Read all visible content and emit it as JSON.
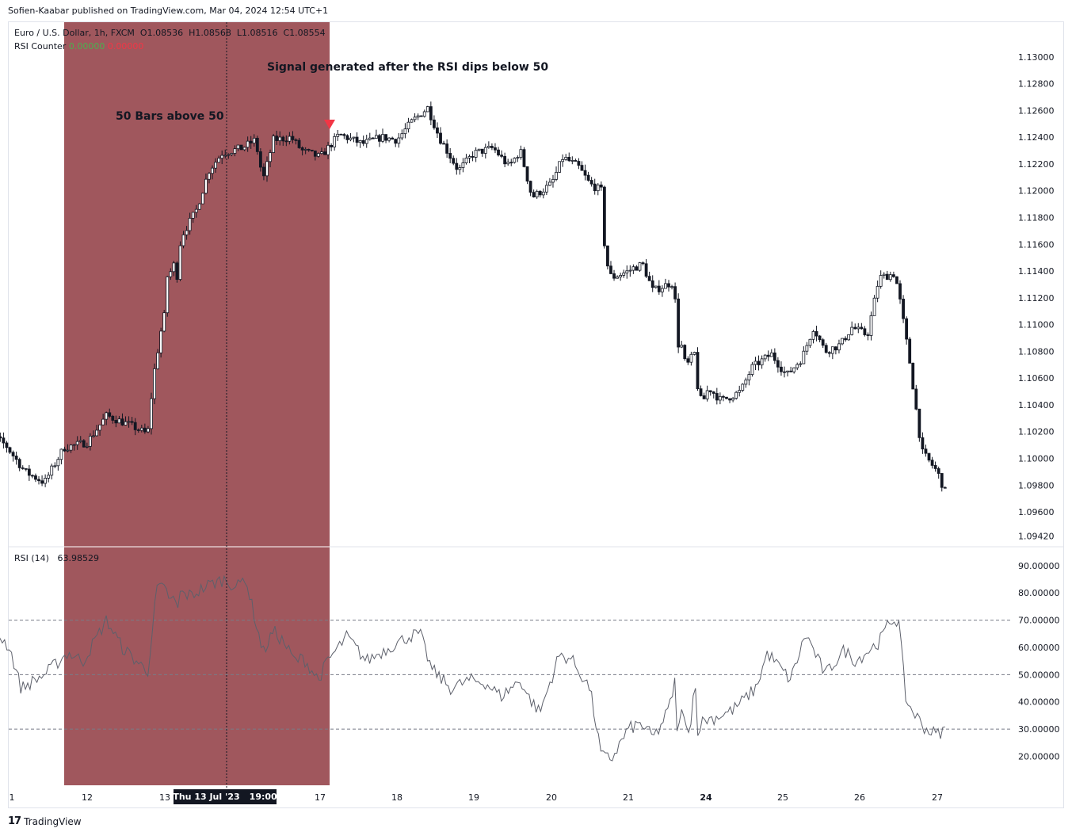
{
  "header": {
    "credit": "Sofien-Kaabar published on TradingView.com, Mar 04, 2024 12:54 UTC+1"
  },
  "price_legend": {
    "symbol": "Euro / U.S. Dollar, 1h, FXCM",
    "open": "O1.08536",
    "high": "H1.08568",
    "low": "L1.08516",
    "close": "C1.08554"
  },
  "counter_legend": {
    "name": "RSI Counter",
    "value1": "0.00000",
    "value2": "0.00000",
    "color1": "#4caf50",
    "color2": "#f23645"
  },
  "rsi_legend": {
    "name": "RSI (14)",
    "value": "63.98529"
  },
  "annotations": {
    "signal": "Signal generated after the RSI dips below 50",
    "bars": "50 Bars above 50"
  },
  "crosshair": {
    "date": "Thu 13 Jul '23",
    "time": "19:00"
  },
  "footer": {
    "brand": "TradingView",
    "mark": "17"
  },
  "colors": {
    "highlight": "#a0575d",
    "signal_marker": "#f23645",
    "candle": "#131722",
    "rsi_line": "#5d606b"
  },
  "chart_data": [
    {
      "type": "candlestick",
      "title": "Euro / U.S. Dollar, 1h, FXCM",
      "y_ticks": [
        "1.13000",
        "1.12800",
        "1.12600",
        "1.12400",
        "1.12200",
        "1.12000",
        "1.11800",
        "1.11600",
        "1.11400",
        "1.11200",
        "1.11000",
        "1.10800",
        "1.10600",
        "1.10400",
        "1.10200",
        "1.10000",
        "1.09800",
        "1.09600",
        "1.09420"
      ],
      "ylim": [
        1.0942,
        1.1312
      ],
      "x_ticks": [
        "1",
        "12",
        "13",
        "17",
        "18",
        "19",
        "20",
        "21",
        "24",
        "25",
        "26",
        "27"
      ],
      "x_ticks_bold": [
        "24"
      ],
      "highlight_range_days": [
        11.45,
        17.0
      ],
      "signal_marker_day": 17.0,
      "path_points": [
        {
          "d": 10.55,
          "p": 1.1002
        },
        {
          "d": 10.75,
          "p": 1.1018
        },
        {
          "d": 10.95,
          "p": 1.101
        },
        {
          "d": 11.2,
          "p": 1.099
        },
        {
          "d": 11.45,
          "p": 1.0982
        },
        {
          "d": 11.7,
          "p": 1.1008
        },
        {
          "d": 12.0,
          "p": 1.1012
        },
        {
          "d": 12.25,
          "p": 1.1032
        },
        {
          "d": 12.55,
          "p": 1.1025
        },
        {
          "d": 12.78,
          "p": 1.1018
        },
        {
          "d": 12.85,
          "p": 1.106
        },
        {
          "d": 12.95,
          "p": 1.1095
        },
        {
          "d": 13.1,
          "p": 1.1135
        },
        {
          "d": 13.4,
          "p": 1.114
        },
        {
          "d": 13.7,
          "p": 1.1148
        },
        {
          "d": 13.8,
          "p": 1.1132
        },
        {
          "d": 14.0,
          "p": 1.1165
        },
        {
          "d": 14.3,
          "p": 1.1185
        },
        {
          "d": 14.55,
          "p": 1.1215
        },
        {
          "d": 14.8,
          "p": 1.1228
        },
        {
          "d": 15.2,
          "p": 1.1232
        },
        {
          "d": 15.45,
          "p": 1.1238
        },
        {
          "d": 15.6,
          "p": 1.1208
        },
        {
          "d": 15.8,
          "p": 1.1238
        },
        {
          "d": 16.2,
          "p": 1.124
        },
        {
          "d": 16.5,
          "p": 1.123
        },
        {
          "d": 17.0,
          "p": 1.1225
        },
        {
          "d": 17.25,
          "p": 1.1242
        },
        {
          "d": 17.55,
          "p": 1.1235
        },
        {
          "d": 17.8,
          "p": 1.124
        },
        {
          "d": 18.0,
          "p": 1.1238
        },
        {
          "d": 18.2,
          "p": 1.1252
        },
        {
          "d": 18.4,
          "p": 1.1262
        },
        {
          "d": 18.55,
          "p": 1.124
        },
        {
          "d": 18.8,
          "p": 1.1215
        },
        {
          "d": 19.0,
          "p": 1.1228
        },
        {
          "d": 19.25,
          "p": 1.1232
        },
        {
          "d": 19.45,
          "p": 1.1218
        },
        {
          "d": 19.6,
          "p": 1.123
        },
        {
          "d": 19.75,
          "p": 1.1195
        },
        {
          "d": 20.0,
          "p": 1.1205
        },
        {
          "d": 20.15,
          "p": 1.1225
        },
        {
          "d": 20.35,
          "p": 1.1218
        },
        {
          "d": 20.5,
          "p": 1.1205
        },
        {
          "d": 20.65,
          "p": 1.12
        },
        {
          "d": 20.7,
          "p": 1.115
        },
        {
          "d": 20.78,
          "p": 1.1135
        },
        {
          "d": 21.1,
          "p": 1.1142
        },
        {
          "d": 21.35,
          "p": 1.1145
        },
        {
          "d": 21.6,
          "p": 1.1125
        },
        {
          "d": 21.8,
          "p": 1.1128
        },
        {
          "d": 22.1,
          "p": 1.1132
        },
        {
          "d": 22.3,
          "p": 1.1125
        },
        {
          "d": 22.35,
          "p": 1.1082
        },
        {
          "d": 22.6,
          "p": 1.1088
        },
        {
          "d": 22.9,
          "p": 1.1068
        },
        {
          "d": 23.2,
          "p": 1.1075
        },
        {
          "d": 23.45,
          "p": 1.108
        },
        {
          "d": 23.55,
          "p": 1.1052
        },
        {
          "d": 23.8,
          "p": 1.104
        },
        {
          "d": 24.05,
          "p": 1.1052
        },
        {
          "d": 24.2,
          "p": 1.1043
        },
        {
          "d": 24.45,
          "p": 1.105
        },
        {
          "d": 24.6,
          "p": 1.1068
        },
        {
          "d": 24.85,
          "p": 1.1078
        },
        {
          "d": 25.05,
          "p": 1.1062
        },
        {
          "d": 25.25,
          "p": 1.1075
        },
        {
          "d": 25.4,
          "p": 1.1098
        },
        {
          "d": 25.55,
          "p": 1.108
        },
        {
          "d": 25.75,
          "p": 1.1085
        },
        {
          "d": 25.9,
          "p": 1.1098
        },
        {
          "d": 26.1,
          "p": 1.1092
        },
        {
          "d": 26.25,
          "p": 1.1135
        },
        {
          "d": 26.45,
          "p": 1.1138
        },
        {
          "d": 26.5,
          "p": 1.1125
        },
        {
          "d": 26.65,
          "p": 1.107
        },
        {
          "d": 26.8,
          "p": 1.1005
        },
        {
          "d": 27.0,
          "p": 1.099
        },
        {
          "d": 27.1,
          "p": 1.0975
        }
      ]
    },
    {
      "type": "line",
      "title": "RSI (14)",
      "y_ticks": [
        "90.00000",
        "80.00000",
        "70.00000",
        "60.00000",
        "50.00000",
        "40.00000",
        "30.00000",
        "20.00000"
      ],
      "ylim": [
        16.5,
        93
      ],
      "levels": [
        70,
        50,
        30
      ],
      "series": [
        {
          "values_by_day": [
            {
              "d": 10.55,
              "v": 73
            },
            {
              "d": 10.75,
              "v": 79
            },
            {
              "d": 10.85,
              "v": 65
            },
            {
              "d": 11.0,
              "v": 60
            },
            {
              "d": 11.15,
              "v": 45
            },
            {
              "d": 11.45,
              "v": 50
            },
            {
              "d": 11.75,
              "v": 58
            },
            {
              "d": 11.95,
              "v": 55
            },
            {
              "d": 12.25,
              "v": 70
            },
            {
              "d": 12.45,
              "v": 60
            },
            {
              "d": 12.78,
              "v": 51
            },
            {
              "d": 12.9,
              "v": 82
            },
            {
              "d": 13.15,
              "v": 80
            },
            {
              "d": 13.4,
              "v": 77
            },
            {
              "d": 13.65,
              "v": 78
            },
            {
              "d": 13.75,
              "v": 71
            },
            {
              "d": 13.95,
              "v": 80
            },
            {
              "d": 14.2,
              "v": 79
            },
            {
              "d": 14.55,
              "v": 83
            },
            {
              "d": 14.85,
              "v": 85
            },
            {
              "d": 15.1,
              "v": 82
            },
            {
              "d": 15.25,
              "v": 86
            },
            {
              "d": 15.45,
              "v": 70
            },
            {
              "d": 15.6,
              "v": 58
            },
            {
              "d": 15.8,
              "v": 66
            },
            {
              "d": 16.0,
              "v": 62
            },
            {
              "d": 16.3,
              "v": 55
            },
            {
              "d": 16.55,
              "v": 56
            },
            {
              "d": 16.75,
              "v": 52
            },
            {
              "d": 16.97,
              "v": 48
            },
            {
              "d": 17.1,
              "v": 55
            },
            {
              "d": 17.35,
              "v": 64
            },
            {
              "d": 17.6,
              "v": 55
            },
            {
              "d": 17.9,
              "v": 60
            },
            {
              "d": 18.15,
              "v": 64
            },
            {
              "d": 18.3,
              "v": 65
            },
            {
              "d": 18.45,
              "v": 52
            },
            {
              "d": 18.7,
              "v": 45
            },
            {
              "d": 18.95,
              "v": 48
            },
            {
              "d": 19.15,
              "v": 47
            },
            {
              "d": 19.35,
              "v": 42
            },
            {
              "d": 19.6,
              "v": 48
            },
            {
              "d": 19.7,
              "v": 42
            },
            {
              "d": 19.85,
              "v": 36
            },
            {
              "d": 20.1,
              "v": 57
            },
            {
              "d": 20.25,
              "v": 56
            },
            {
              "d": 20.5,
              "v": 45
            },
            {
              "d": 20.65,
              "v": 20
            },
            {
              "d": 20.78,
              "v": 19
            },
            {
              "d": 21.0,
              "v": 30
            },
            {
              "d": 21.3,
              "v": 32
            },
            {
              "d": 21.6,
              "v": 27
            },
            {
              "d": 21.75,
              "v": 30
            },
            {
              "d": 22.0,
              "v": 38
            },
            {
              "d": 22.3,
              "v": 48
            },
            {
              "d": 22.33,
              "v": 53
            },
            {
              "d": 22.4,
              "v": 27
            },
            {
              "d": 22.6,
              "v": 38
            },
            {
              "d": 22.9,
              "v": 30
            },
            {
              "d": 23.15,
              "v": 32
            },
            {
              "d": 23.3,
              "v": 42
            },
            {
              "d": 23.45,
              "v": 45
            },
            {
              "d": 23.55,
              "v": 30
            },
            {
              "d": 23.85,
              "v": 33
            },
            {
              "d": 24.1,
              "v": 34
            },
            {
              "d": 24.35,
              "v": 37
            },
            {
              "d": 24.65,
              "v": 45
            },
            {
              "d": 24.8,
              "v": 58
            },
            {
              "d": 25.1,
              "v": 48
            },
            {
              "d": 25.3,
              "v": 65
            },
            {
              "d": 25.55,
              "v": 50
            },
            {
              "d": 25.8,
              "v": 59
            },
            {
              "d": 25.95,
              "v": 55
            },
            {
              "d": 26.25,
              "v": 62
            },
            {
              "d": 26.4,
              "v": 70
            },
            {
              "d": 26.5,
              "v": 70
            },
            {
              "d": 26.6,
              "v": 40
            },
            {
              "d": 26.85,
              "v": 30
            },
            {
              "d": 27.0,
              "v": 28
            },
            {
              "d": 27.1,
              "v": 30
            }
          ]
        }
      ]
    }
  ]
}
